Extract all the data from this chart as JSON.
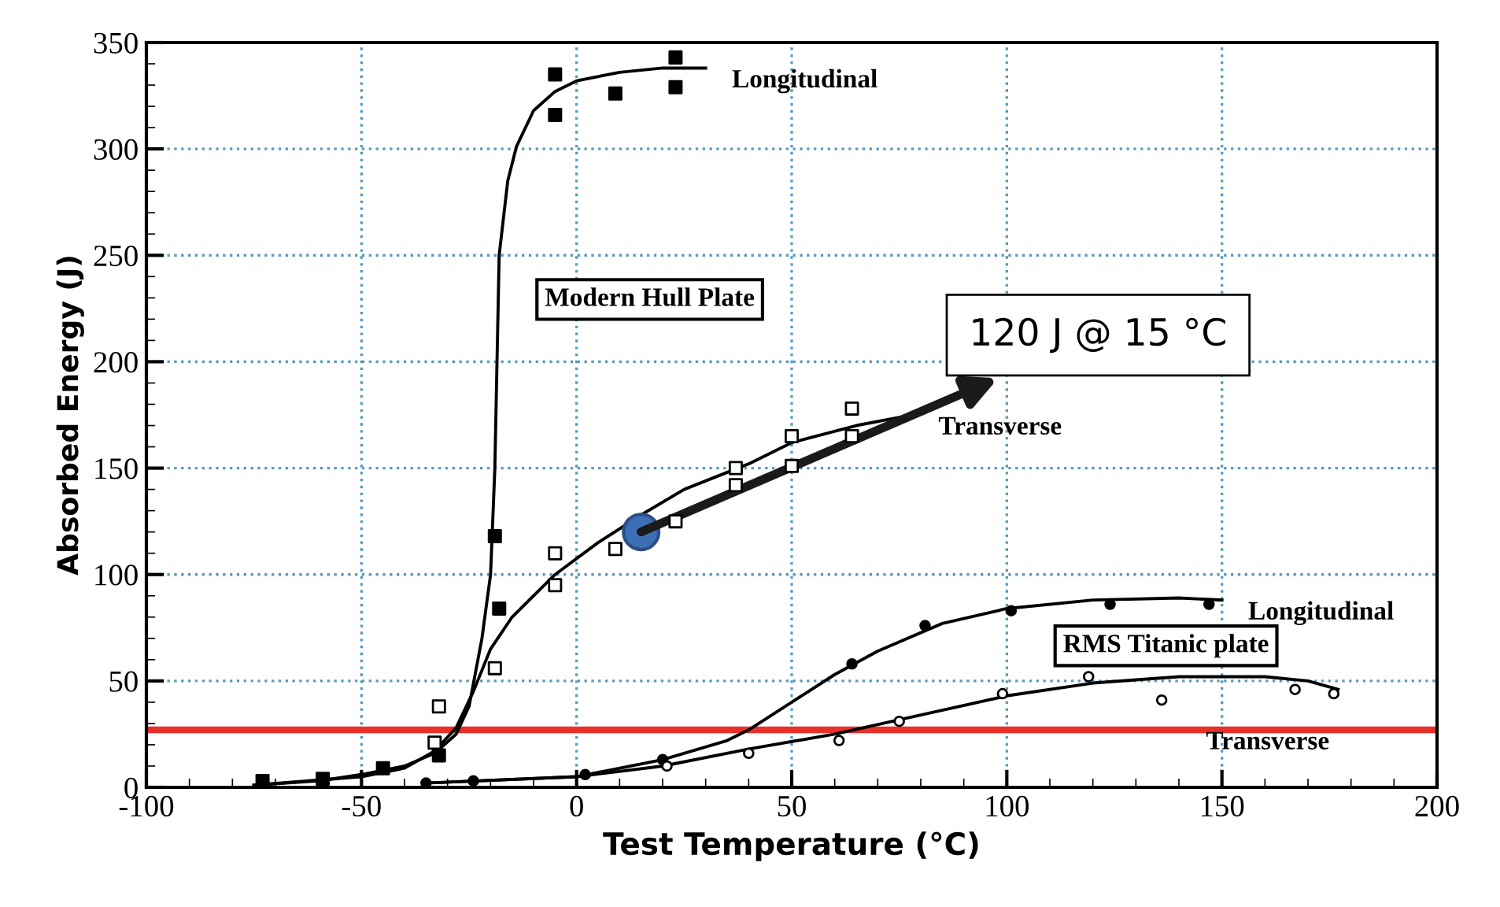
{
  "chart_data": {
    "type": "scatter",
    "xlabel": "Test Temperature (°C)",
    "ylabel": "Absorbed Energy (J)",
    "xlim": [
      -100,
      200
    ],
    "xticks": [
      -100,
      -50,
      0,
      50,
      100,
      150,
      200
    ],
    "ylim": [
      0,
      350
    ],
    "yticks": [
      0,
      50,
      100,
      150,
      200,
      250,
      300,
      350
    ],
    "grid": true,
    "legend": false,
    "series": [
      {
        "marker": "square",
        "color": "#000000",
        "x": [
          -73,
          -59,
          -45,
          -32,
          -18,
          -19,
          -5,
          -5,
          9,
          23,
          23
        ],
        "values": [
          3,
          4,
          9,
          15,
          84,
          118,
          316,
          335,
          326,
          329,
          343
        ]
      },
      {
        "marker": "square",
        "color": "#ffffff",
        "x": [
          -33,
          -32,
          -19,
          -5,
          -5,
          9,
          23,
          37,
          37,
          50,
          50,
          64,
          64
        ],
        "values": [
          21,
          38,
          56,
          95,
          110,
          112,
          125,
          142,
          150,
          151,
          165,
          165,
          178
        ]
      },
      {
        "marker": "circle",
        "color": "#000000",
        "x": [
          -35,
          -24,
          2,
          20,
          64,
          81,
          101,
          124,
          147
        ],
        "values": [
          2,
          3,
          6,
          13,
          58,
          76,
          83,
          86,
          86
        ]
      },
      {
        "marker": "circle",
        "color": "#ffffff",
        "x": [
          21,
          40,
          61,
          75,
          99,
          119,
          136,
          167,
          176
        ],
        "values": [
          10,
          16,
          22,
          31,
          44,
          52,
          41,
          46,
          44
        ]
      },
      {
        "type": "line",
        "name": "Longitudinal",
        "color": "#000000",
        "x": [
          -75,
          -60,
          -50,
          -40,
          -33,
          -28,
          -25,
          -22,
          -20,
          -19,
          -18.5,
          -18,
          -16,
          -14,
          -10,
          -5,
          0,
          10,
          20,
          30
        ],
        "values": [
          1,
          3,
          6,
          10,
          16,
          25,
          38,
          70,
          100,
          150,
          200,
          250,
          285,
          301,
          318,
          327,
          332,
          336,
          338,
          338
        ]
      },
      {
        "type": "line",
        "name": "Transverse",
        "color": "#000000",
        "x": [
          -75,
          -50,
          -40,
          -33,
          -28,
          -24,
          -20,
          -15,
          -5,
          5,
          15,
          25,
          40,
          50,
          65,
          78
        ],
        "values": [
          1,
          5,
          9,
          17,
          28,
          45,
          65,
          80,
          100,
          115,
          128,
          140,
          152,
          162,
          170,
          175
        ]
      },
      {
        "type": "line",
        "name": "Longitudinal",
        "color": "#000000",
        "x": [
          -35,
          0,
          20,
          35,
          40,
          50,
          60,
          70,
          85,
          100,
          120,
          140,
          150
        ],
        "values": [
          2,
          5,
          13,
          22,
          27,
          40,
          53,
          64,
          77,
          84,
          88,
          89,
          88
        ]
      },
      {
        "type": "line",
        "name": "Transverse",
        "color": "#000000",
        "x": [
          -35,
          0,
          20,
          40,
          60,
          80,
          100,
          120,
          140,
          160,
          170,
          177
        ],
        "values": [
          2,
          5,
          10,
          18,
          25,
          34,
          43,
          49,
          52,
          52,
          50,
          46
        ]
      }
    ],
    "ref_lines": [
      {
        "axis": "y",
        "value": 27,
        "color": "#e8312a"
      }
    ],
    "annotations": [
      "Modern Hull Plate",
      "RMS Titanic plate",
      {
        "text": "120 J @ 15 °C",
        "x": 15,
        "y": 120
      }
    ]
  }
}
